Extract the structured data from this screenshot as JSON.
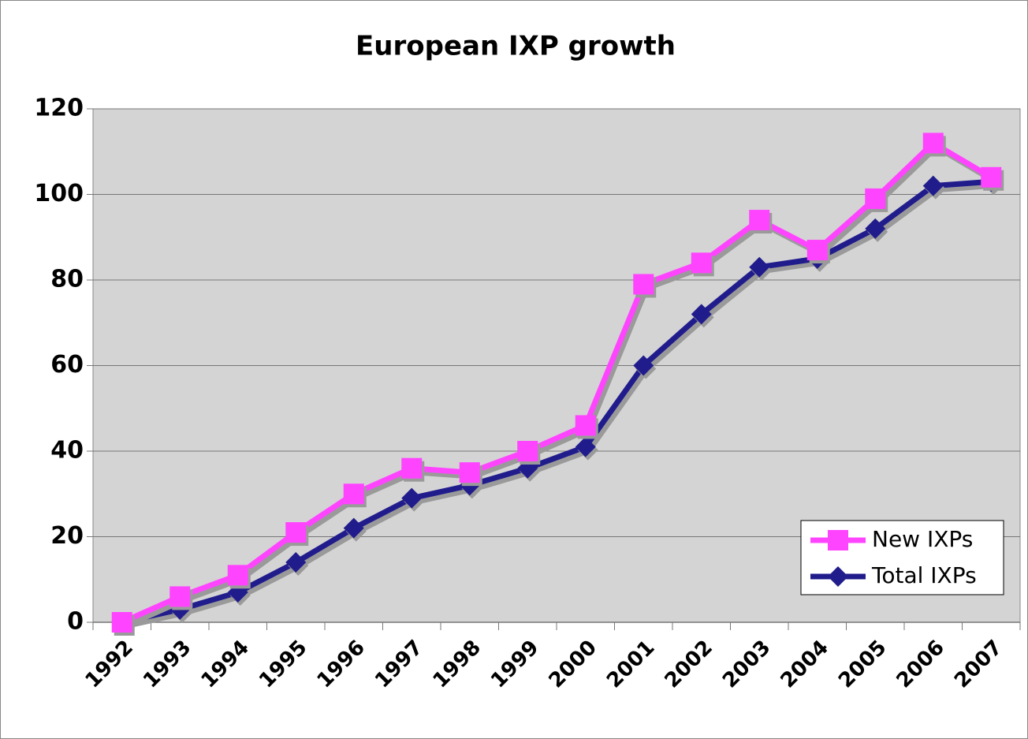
{
  "chart_data": {
    "type": "line",
    "title": "European IXP growth",
    "categories": [
      "1992",
      "1993",
      "1994",
      "1995",
      "1996",
      "1997",
      "1998",
      "1999",
      "2000",
      "2001",
      "2002",
      "2003",
      "2004",
      "2005",
      "2006",
      "2007"
    ],
    "series": [
      {
        "name": "New IXPs",
        "color": "#ff44ff",
        "marker": "square",
        "values": [
          0,
          6,
          11,
          21,
          30,
          36,
          35,
          40,
          46,
          79,
          84,
          94,
          87,
          99,
          112,
          104
        ]
      },
      {
        "name": "Total IXPs",
        "color": "#211c8c",
        "marker": "diamond",
        "values": [
          0,
          3,
          7,
          14,
          22,
          29,
          32,
          36,
          41,
          60,
          72,
          83,
          85,
          92,
          102,
          103
        ]
      }
    ],
    "ylim": [
      0,
      120
    ],
    "yticks": [
      0,
      20,
      40,
      60,
      80,
      100,
      120
    ],
    "grid": true,
    "legend": "lower right"
  }
}
